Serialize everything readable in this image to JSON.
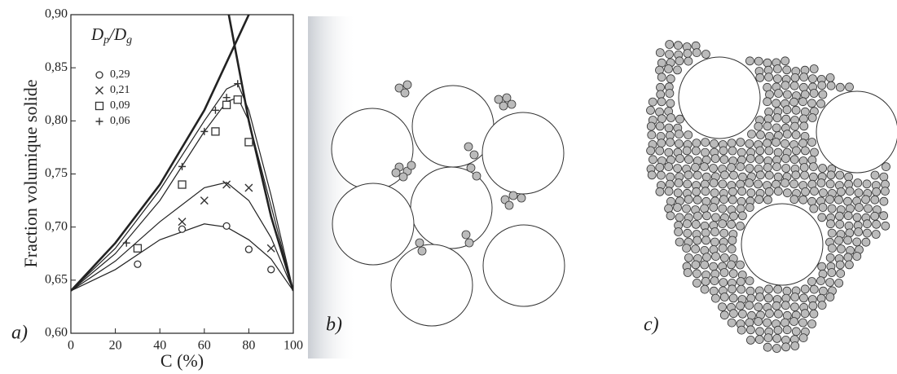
{
  "chart_data": {
    "type": "scatter",
    "panel_label": "a)",
    "xlabel": "C (%)",
    "ylabel": "Fraction volumique solide",
    "legend_title": [
      "D",
      "p",
      "/D",
      "g"
    ],
    "xlim": [
      0,
      100
    ],
    "ylim": [
      0.6,
      0.9
    ],
    "xticks": [
      0,
      20,
      40,
      60,
      80,
      100
    ],
    "yticks": [
      {
        "value": 0.6,
        "label": "0,60"
      },
      {
        "value": 0.65,
        "label": "0,65"
      },
      {
        "value": 0.7,
        "label": "0,70"
      },
      {
        "value": 0.75,
        "label": "0,75"
      },
      {
        "value": 0.8,
        "label": "0,80"
      },
      {
        "value": 0.85,
        "label": "0,85"
      },
      {
        "value": 0.9,
        "label": "0,90"
      }
    ],
    "series": [
      {
        "name": "0,29",
        "marker": "circle",
        "color": "#333",
        "x": [
          30,
          50,
          70,
          80,
          90
        ],
        "values": [
          0.665,
          0.698,
          0.701,
          0.679,
          0.66
        ]
      },
      {
        "name": "0,21",
        "marker": "x",
        "color": "#333",
        "x": [
          50,
          60,
          70,
          80,
          90
        ],
        "values": [
          0.705,
          0.725,
          0.74,
          0.737,
          0.68
        ]
      },
      {
        "name": "0,09",
        "marker": "square",
        "color": "#333",
        "x": [
          30,
          50,
          65,
          70,
          75,
          80
        ],
        "values": [
          0.68,
          0.74,
          0.79,
          0.815,
          0.82,
          0.78
        ]
      },
      {
        "name": "0,06",
        "marker": "plus",
        "color": "#333",
        "x": [
          25,
          50,
          60,
          65,
          70,
          75
        ],
        "values": [
          0.685,
          0.757,
          0.79,
          0.81,
          0.822,
          0.835
        ]
      }
    ],
    "curves": [
      {
        "x": [
          0,
          20,
          40,
          60,
          70,
          80,
          90,
          100
        ],
        "values": [
          0.64,
          0.66,
          0.688,
          0.703,
          0.7,
          0.688,
          0.67,
          0.64
        ]
      },
      {
        "x": [
          0,
          20,
          40,
          60,
          70,
          80,
          90,
          100
        ],
        "values": [
          0.64,
          0.668,
          0.705,
          0.737,
          0.742,
          0.725,
          0.69,
          0.64
        ]
      },
      {
        "x": [
          0,
          20,
          40,
          60,
          70,
          75,
          80,
          90,
          100
        ],
        "values": [
          0.64,
          0.675,
          0.725,
          0.79,
          0.818,
          0.822,
          0.8,
          0.72,
          0.64
        ]
      },
      {
        "x": [
          0,
          20,
          40,
          60,
          70,
          75,
          80,
          90,
          100
        ],
        "values": [
          0.64,
          0.68,
          0.735,
          0.8,
          0.83,
          0.835,
          0.81,
          0.73,
          0.64
        ]
      }
    ],
    "limit_curves": [
      {
        "x": [
          0,
          20,
          40,
          60,
          70,
          80
        ],
        "values": [
          0.64,
          0.685,
          0.74,
          0.81,
          0.855,
          0.9
        ]
      },
      {
        "x": [
          71,
          80,
          90,
          100
        ],
        "values": [
          0.9,
          0.8,
          0.71,
          0.64
        ]
      }
    ]
  },
  "panels": {
    "b": {
      "label": "b)"
    },
    "c": {
      "label": "c)"
    }
  }
}
